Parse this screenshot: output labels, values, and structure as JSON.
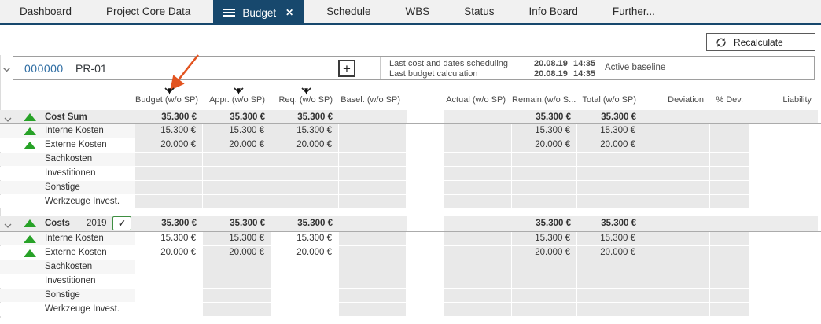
{
  "tabs": {
    "items": [
      {
        "label": "Dashboard"
      },
      {
        "label": "Project Core Data"
      },
      {
        "label": "Budget"
      },
      {
        "label": "Schedule"
      },
      {
        "label": "WBS"
      },
      {
        "label": "Status"
      },
      {
        "label": "Info Board"
      },
      {
        "label": "Further..."
      }
    ],
    "active_label": "Budget",
    "close_glyph": "✕"
  },
  "toolbar": {
    "recalculate_label": "Recalculate"
  },
  "project_header": {
    "number": "000000",
    "name": "PR-01",
    "add_button": "+",
    "info": [
      {
        "label": "Last cost and dates scheduling",
        "date": "20.08.19",
        "time": "14:35"
      },
      {
        "label": "Last budget calculation",
        "date": "20.08.19",
        "time": "14:35"
      }
    ],
    "baseline": "Active baseline"
  },
  "columns": {
    "left": [
      "Budget (w/o SP)",
      "Appr. (w/o SP)",
      "Req. (w/o SP)",
      "Basel. (w/o SP)"
    ],
    "right": [
      "Actual (w/o SP)",
      "Remain.(w/o S...",
      "Total (w/o SP)",
      "Deviation",
      "% Dev.",
      "Liability"
    ],
    "filtered_columns": [
      "Budget (w/o SP)",
      "Appr. (w/o SP)",
      "Req. (w/o SP)"
    ]
  },
  "table": {
    "value_order": [
      "budget",
      "appr",
      "req",
      "basel",
      "actual",
      "remain",
      "total",
      "deviation",
      "pdev",
      "liability"
    ],
    "blocks": [
      {
        "summary": {
          "label": "Cost Sum",
          "year": "",
          "checkbox": false,
          "values": [
            "35.300 €",
            "35.300 €",
            "35.300 €",
            "",
            "",
            "35.300 €",
            "35.300 €",
            "",
            "",
            ""
          ]
        },
        "editable_left_cols": [],
        "rows": [
          {
            "label": "Interne Kosten",
            "trend": true,
            "values": [
              "15.300 €",
              "15.300 €",
              "15.300 €",
              "",
              "",
              "15.300 €",
              "15.300 €",
              "",
              "",
              ""
            ]
          },
          {
            "label": "Externe Kosten",
            "trend": true,
            "values": [
              "20.000 €",
              "20.000 €",
              "20.000 €",
              "",
              "",
              "20.000 €",
              "20.000 €",
              "",
              "",
              ""
            ]
          },
          {
            "label": "Sachkosten",
            "trend": false,
            "values": [
              "",
              "",
              "",
              "",
              "",
              "",
              "",
              "",
              "",
              ""
            ]
          },
          {
            "label": "Investitionen",
            "trend": false,
            "values": [
              "",
              "",
              "",
              "",
              "",
              "",
              "",
              "",
              "",
              ""
            ]
          },
          {
            "label": "Sonstige",
            "trend": false,
            "values": [
              "",
              "",
              "",
              "",
              "",
              "",
              "",
              "",
              "",
              ""
            ]
          },
          {
            "label": "Werkzeuge Invest.",
            "trend": false,
            "values": [
              "",
              "",
              "",
              "",
              "",
              "",
              "",
              "",
              "",
              ""
            ]
          }
        ]
      },
      {
        "summary": {
          "label": "Costs",
          "year": "2019",
          "checkbox": true,
          "checkbox_glyph": "✓",
          "values": [
            "35.300 €",
            "35.300 €",
            "35.300 €",
            "",
            "",
            "35.300 €",
            "35.300 €",
            "",
            "",
            ""
          ]
        },
        "editable_left_cols": [
          0,
          2
        ],
        "rows": [
          {
            "label": "Interne Kosten",
            "trend": true,
            "values": [
              "15.300 €",
              "15.300 €",
              "15.300 €",
              "",
              "",
              "15.300 €",
              "15.300 €",
              "",
              "",
              ""
            ]
          },
          {
            "label": "Externe Kosten",
            "trend": true,
            "values": [
              "20.000 €",
              "20.000 €",
              "20.000 €",
              "",
              "",
              "20.000 €",
              "20.000 €",
              "",
              "",
              ""
            ]
          },
          {
            "label": "Sachkosten",
            "trend": false,
            "values": [
              "",
              "",
              "",
              "",
              "",
              "",
              "",
              "",
              "",
              ""
            ]
          },
          {
            "label": "Investitionen",
            "trend": false,
            "values": [
              "",
              "",
              "",
              "",
              "",
              "",
              "",
              "",
              "",
              ""
            ]
          },
          {
            "label": "Sonstige",
            "trend": false,
            "values": [
              "",
              "",
              "",
              "",
              "",
              "",
              "",
              "",
              "",
              ""
            ]
          },
          {
            "label": "Werkzeuge Invest.",
            "trend": false,
            "values": [
              "",
              "",
              "",
              "",
              "",
              "",
              "",
              "",
              "",
              ""
            ]
          }
        ]
      }
    ]
  },
  "colors": {
    "active_tab": "#17486d",
    "project_number_blue": "#2e6da3",
    "trend_green": "#28a228",
    "readonly_cell_gray": "#e9e9e9",
    "annotation_arrow_orange": "#e2531f",
    "checkbox_green": "#3e8e41"
  }
}
